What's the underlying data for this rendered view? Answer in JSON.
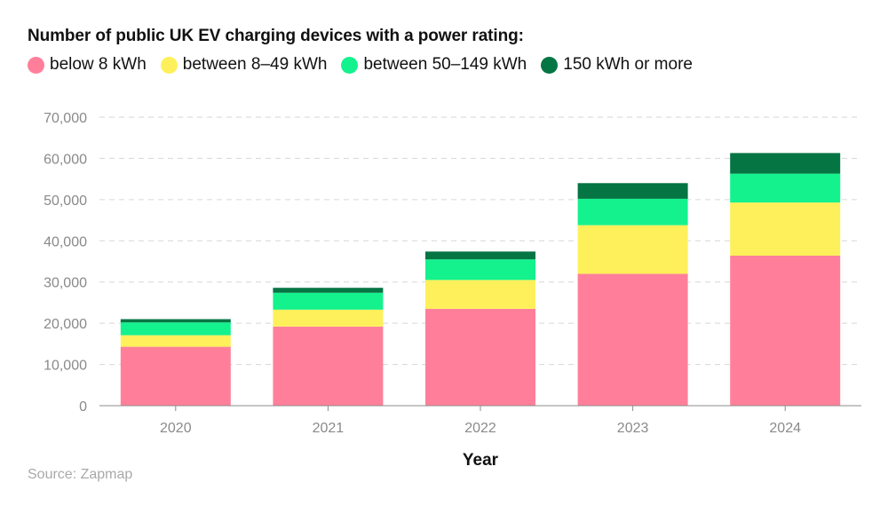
{
  "chart_data": {
    "type": "bar",
    "stacked": true,
    "title": "Number of public UK EV charging devices with a power rating:",
    "xlabel": "Year",
    "ylabel": "",
    "ylim": [
      0,
      70000
    ],
    "yticks": [
      0,
      10000,
      20000,
      30000,
      40000,
      50000,
      60000,
      70000
    ],
    "ytick_labels": [
      "0",
      "10,000",
      "20,000",
      "30,000",
      "40,000",
      "50,000",
      "60,000",
      "70,000"
    ],
    "grid": true,
    "legend_position": "top-left",
    "categories": [
      "2020",
      "2021",
      "2022",
      "2023",
      "2024"
    ],
    "series": [
      {
        "name": "below 8 kWh",
        "color": "#ff7f9a",
        "values": [
          14300,
          19200,
          23500,
          32000,
          36400
        ]
      },
      {
        "name": "between 8–49 kWh",
        "color": "#fef05a",
        "values": [
          2800,
          4100,
          7000,
          11800,
          12900
        ]
      },
      {
        "name": "between 50–149 kWh",
        "color": "#14f28e",
        "values": [
          3100,
          4100,
          5000,
          6400,
          7000
        ]
      },
      {
        "name": "150 kWh or more",
        "color": "#057543",
        "values": [
          800,
          1200,
          1900,
          3800,
          5000
        ]
      }
    ]
  },
  "source": "Source: Zapmap"
}
